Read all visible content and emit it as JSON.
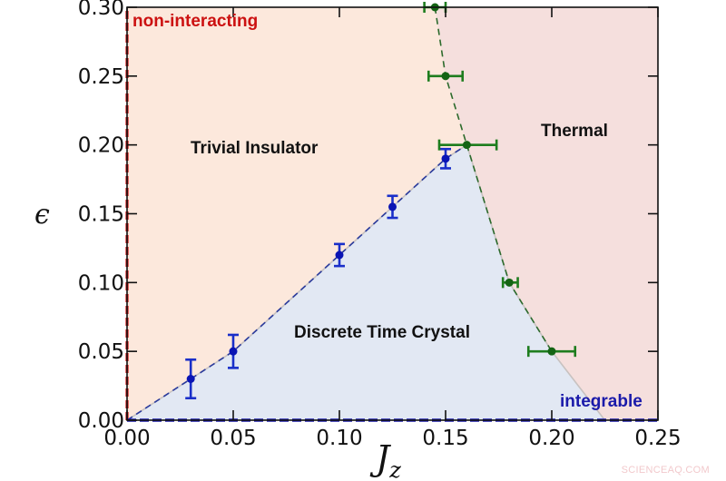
{
  "chart_data": {
    "type": "scatter",
    "title": "",
    "xlabel": "J_z",
    "ylabel": "ϵ",
    "xlim": [
      0.0,
      0.25
    ],
    "ylim": [
      0.0,
      0.3
    ],
    "grid": false,
    "x_ticks": [
      "0.00",
      "0.05",
      "0.10",
      "0.15",
      "0.20",
      "0.25"
    ],
    "y_ticks": [
      "0.00",
      "0.05",
      "0.10",
      "0.15",
      "0.20",
      "0.25",
      "0.30"
    ],
    "regions": [
      {
        "name": "Trivial Insulator",
        "color": "#fce8dc"
      },
      {
        "name": "Discrete Time Crystal",
        "color": "#e2e8f3"
      },
      {
        "name": "Thermal",
        "color": "#f5dfdd"
      }
    ],
    "boundary_lines": [
      {
        "name": "non-interacting",
        "at": "J_z = 0",
        "color": "#cc1111",
        "style": "dashed"
      },
      {
        "name": "integrable",
        "at": "ϵ = 0",
        "color": "#1a1aaa",
        "style": "dashed"
      }
    ],
    "series": [
      {
        "name": "DTC / Trivial Insulator boundary",
        "color": "#1a2fc9",
        "points": [
          {
            "x": 0.03,
            "y": 0.03,
            "yerr": 0.014
          },
          {
            "x": 0.05,
            "y": 0.05,
            "yerr": 0.012
          },
          {
            "x": 0.1,
            "y": 0.12,
            "yerr": 0.008
          },
          {
            "x": 0.125,
            "y": 0.155,
            "yerr": 0.008
          },
          {
            "x": 0.15,
            "y": 0.19,
            "yerr": 0.007
          }
        ]
      },
      {
        "name": "Thermal boundary",
        "color": "#1e7d1e",
        "points": [
          {
            "x": 0.145,
            "y": 0.3,
            "xerr_minus": 0.005,
            "xerr_plus": 0.005
          },
          {
            "x": 0.15,
            "y": 0.25,
            "xerr_minus": 0.008,
            "xerr_plus": 0.008
          },
          {
            "x": 0.16,
            "y": 0.2,
            "xerr_minus": 0.013,
            "xerr_plus": 0.014
          },
          {
            "x": 0.18,
            "y": 0.1,
            "xerr_minus": 0.003,
            "xerr_plus": 0.004
          },
          {
            "x": 0.2,
            "y": 0.05,
            "xerr_minus": 0.011,
            "xerr_plus": 0.011
          }
        ]
      }
    ],
    "annotations": [
      "Trivial Insulator",
      "Thermal",
      "Discrete Time Crystal",
      "non-interacting",
      "integrable"
    ]
  },
  "labels": {
    "trivial_insulator": "Trivial Insulator",
    "thermal": "Thermal",
    "dtc": "Discrete Time Crystal",
    "non_interacting": "non-interacting",
    "integrable": "integrable",
    "x_axis_main": "J",
    "x_axis_sub": "z",
    "y_axis": "ϵ",
    "watermark": "SCIENCEAQ.COM"
  },
  "colors": {
    "trivial": "#fce8dc",
    "dtc": "#e2e8f3",
    "thermal": "#f5dfdd",
    "blue_series": "#1a2fc9",
    "green_series": "#1e7d1e",
    "non_interacting": "#cc1111",
    "integrable": "#1a1aaa"
  }
}
